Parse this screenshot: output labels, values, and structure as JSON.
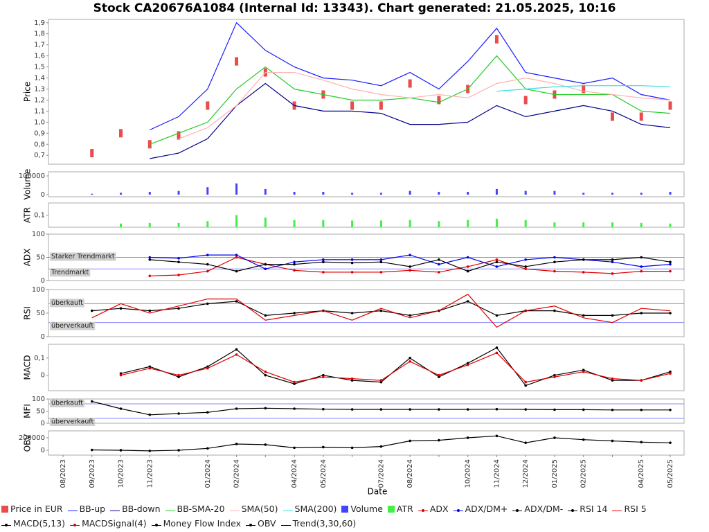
{
  "chart_data": {
    "type": "multi-panel",
    "title": "Stock CA20676A1084 (Internal Id: 13343). Chart generated: 21.05.2025, 10:16",
    "xlabel": "Date",
    "categories": [
      "08/2023",
      "09/2023",
      "10/2023",
      "11/2023",
      null,
      "01/2024",
      "02/2024",
      null,
      "04/2024",
      "05/2024",
      null,
      "07/2024",
      "08/2024",
      null,
      "10/2024",
      "11/2024",
      "12/2024",
      "01/2025",
      "02/2025",
      null,
      "04/2025",
      "05/2025"
    ],
    "panels": [
      {
        "type": "line",
        "ylabel": "Price",
        "ylim": [
          0.62,
          1.93
        ],
        "yticks": [
          {
            "value": 0.7,
            "label": "0,7"
          },
          {
            "value": 0.8,
            "label": "0,8"
          },
          {
            "value": 0.9,
            "label": "0,9"
          },
          {
            "value": 1.0,
            "label": "1,0"
          },
          {
            "value": 1.1,
            "label": "1,1"
          },
          {
            "value": 1.2,
            "label": "1,2"
          },
          {
            "value": 1.3,
            "label": "1,3"
          },
          {
            "value": 1.4,
            "label": "1,4"
          },
          {
            "value": 1.5,
            "label": "1,5"
          },
          {
            "value": 1.6,
            "label": "1,6"
          },
          {
            "value": 1.7,
            "label": "1,7"
          },
          {
            "value": 1.8,
            "label": "1,8"
          },
          {
            "value": 1.9,
            "label": "1,9"
          }
        ],
        "series": [
          {
            "name": "Price in EUR",
            "color": "#e84c4c",
            "style": "box",
            "values": [
              null,
              0.72,
              0.9,
              0.8,
              0.88,
              1.15,
              1.55,
              1.45,
              1.15,
              1.25,
              1.15,
              1.15,
              1.35,
              1.2,
              1.3,
              1.75,
              1.2,
              1.25,
              1.3,
              1.05,
              1.05,
              1.15
            ]
          },
          {
            "name": "BB-up",
            "color": "#1a1aff",
            "style": "line",
            "values": [
              null,
              null,
              null,
              0.93,
              1.05,
              1.3,
              1.9,
              1.65,
              1.5,
              1.4,
              1.38,
              1.33,
              1.45,
              1.3,
              1.55,
              1.85,
              1.45,
              1.4,
              1.35,
              1.4,
              1.25,
              1.2
            ]
          },
          {
            "name": "BB-down",
            "color": "#00008b",
            "style": "line",
            "values": [
              null,
              null,
              null,
              0.67,
              0.72,
              0.85,
              1.15,
              1.35,
              1.15,
              1.1,
              1.1,
              1.08,
              0.98,
              0.98,
              1.0,
              1.15,
              1.05,
              1.1,
              1.15,
              1.1,
              0.98,
              0.95
            ]
          },
          {
            "name": "BB-SMA-20",
            "color": "#22cc22",
            "style": "line",
            "values": [
              null,
              null,
              null,
              0.8,
              0.9,
              1.0,
              1.3,
              1.5,
              1.3,
              1.25,
              1.2,
              1.2,
              1.22,
              1.18,
              1.3,
              1.6,
              1.3,
              1.25,
              1.25,
              1.25,
              1.1,
              1.08
            ]
          },
          {
            "name": "SMA(50)",
            "color": "#ffb0b0",
            "style": "line",
            "values": [
              null,
              null,
              null,
              null,
              0.85,
              0.95,
              1.15,
              1.45,
              1.45,
              1.38,
              1.3,
              1.25,
              1.22,
              1.25,
              1.22,
              1.35,
              1.4,
              1.35,
              1.28,
              1.25,
              1.22,
              1.2
            ]
          },
          {
            "name": "SMA(200)",
            "color": "#33dddd",
            "style": "line",
            "values": [
              null,
              null,
              null,
              null,
              null,
              null,
              null,
              null,
              null,
              null,
              null,
              null,
              null,
              null,
              null,
              1.28,
              1.3,
              1.32,
              1.33,
              1.33,
              1.33,
              1.32
            ]
          }
        ]
      },
      {
        "type": "bar",
        "ylabel": "Volume",
        "ylim": [
          -11000,
          122000
        ],
        "yticks": [
          0,
          100000
        ],
        "series": [
          {
            "name": "Volume",
            "color": "#4444ff",
            "style": "bar",
            "values": [
              null,
              5000,
              10000,
              15000,
              20000,
              40000,
              60000,
              30000,
              15000,
              15000,
              10000,
              10000,
              20000,
              15000,
              15000,
              30000,
              20000,
              20000,
              10000,
              10000,
              10000,
              15000
            ]
          }
        ]
      },
      {
        "type": "bar",
        "ylabel": "ATR",
        "ylim": [
          0,
          0.2
        ],
        "yticks": [
          {
            "value": 0.1,
            "label": "0,1"
          }
        ],
        "series": [
          {
            "name": "ATR",
            "color": "#44ee44",
            "style": "bar",
            "values": [
              null,
              null,
              0.03,
              0.035,
              0.035,
              0.05,
              0.1,
              0.08,
              0.06,
              0.06,
              0.055,
              0.055,
              0.06,
              0.05,
              0.06,
              0.07,
              0.06,
              0.04,
              0.04,
              0.04,
              0.035,
              0.03
            ]
          }
        ]
      },
      {
        "type": "line",
        "ylabel": "ADX",
        "ylim": [
          0,
          100
        ],
        "yticks": [
          0,
          50,
          100
        ],
        "reflines": [
          {
            "value": 50,
            "label": "Starker Trendmarkt"
          },
          {
            "value": 25,
            "label": "Trendmarkt"
          }
        ],
        "series": [
          {
            "name": "ADX",
            "color": "#e00000",
            "style": "dots",
            "values": [
              null,
              null,
              null,
              10,
              12,
              20,
              50,
              35,
              22,
              18,
              18,
              18,
              22,
              18,
              30,
              45,
              25,
              20,
              18,
              15,
              20,
              20
            ]
          },
          {
            "name": "ADX/DM+",
            "color": "#0000ee",
            "style": "dots",
            "values": [
              null,
              null,
              null,
              50,
              48,
              55,
              55,
              25,
              40,
              45,
              45,
              45,
              55,
              35,
              50,
              30,
              45,
              50,
              45,
              40,
              30,
              35
            ]
          },
          {
            "name": "ADX/DM-",
            "color": "#000000",
            "style": "dots",
            "values": [
              null,
              null,
              null,
              45,
              40,
              35,
              20,
              35,
              35,
              40,
              38,
              40,
              30,
              45,
              20,
              40,
              30,
              40,
              45,
              45,
              50,
              40
            ]
          }
        ]
      },
      {
        "type": "line",
        "ylabel": "RSI",
        "ylim": [
          0,
          100
        ],
        "yticks": [
          0,
          50,
          100
        ],
        "reflines": [
          {
            "value": 70,
            "label": "überkauft"
          },
          {
            "value": 30,
            "label": "überverkauft"
          }
        ],
        "series": [
          {
            "name": "RSI 14",
            "color": "#000000",
            "style": "dots",
            "values": [
              null,
              55,
              60,
              55,
              60,
              70,
              75,
              45,
              50,
              55,
              50,
              55,
              45,
              55,
              75,
              45,
              55,
              55,
              45,
              45,
              50,
              50
            ]
          },
          {
            "name": "RSI 5",
            "color": "#e00000",
            "style": "line",
            "values": [
              null,
              40,
              70,
              50,
              65,
              80,
              80,
              35,
              45,
              55,
              35,
              60,
              40,
              55,
              90,
              20,
              55,
              65,
              40,
              30,
              60,
              55
            ]
          }
        ]
      },
      {
        "type": "line",
        "ylabel": "MACD",
        "ylim": [
          -0.09,
          0.18
        ],
        "yticks": [
          0,
          {
            "value": 0.1,
            "label": "0,1"
          }
        ],
        "series": [
          {
            "name": "MACD(5,13)",
            "color": "#000000",
            "style": "dots",
            "values": [
              null,
              null,
              0.01,
              0.05,
              -0.01,
              0.05,
              0.15,
              0.0,
              -0.05,
              0.0,
              -0.03,
              -0.04,
              0.1,
              -0.01,
              0.07,
              0.16,
              -0.06,
              0.0,
              0.03,
              -0.03,
              -0.03,
              0.02
            ]
          },
          {
            "name": "MACDSignal(4)",
            "color": "#e00000",
            "style": "dots",
            "values": [
              null,
              null,
              0.0,
              0.04,
              0.0,
              0.04,
              0.12,
              0.02,
              -0.04,
              -0.01,
              -0.02,
              -0.03,
              0.08,
              0.0,
              0.06,
              0.13,
              -0.04,
              -0.01,
              0.02,
              -0.02,
              -0.03,
              0.01
            ]
          }
        ]
      },
      {
        "type": "line",
        "ylabel": "MFI",
        "ylim": [
          0,
          100
        ],
        "yticks": [
          0,
          50,
          100
        ],
        "reflines": [
          {
            "value": 80,
            "label": "überkauft"
          },
          {
            "value": 20,
            "label": "überverkauft"
          }
        ],
        "series": [
          {
            "name": "Money Flow Index",
            "color": "#000000",
            "style": "dots",
            "values": [
              null,
              90,
              60,
              35,
              40,
              45,
              60,
              62,
              60,
              58,
              57,
              57,
              57,
              57,
              57,
              58,
              57,
              56,
              56,
              55,
              55,
              55
            ]
          }
        ]
      },
      {
        "type": "line",
        "ylabel": "OBV",
        "ylim": [
          -78000,
          311000
        ],
        "yticks": [
          0,
          200000
        ],
        "series": [
          {
            "name": "OBV",
            "color": "#000000",
            "style": "dots",
            "values": [
              null,
              5000,
              0,
              -10000,
              0,
              30000,
              100000,
              90000,
              40000,
              50000,
              40000,
              60000,
              150000,
              160000,
              200000,
              230000,
              120000,
              200000,
              170000,
              150000,
              130000,
              120000
            ]
          },
          {
            "name": "Trend(3,30,60)",
            "color": "#000000",
            "style": "line",
            "values": [
              null,
              null,
              null,
              null,
              null,
              null,
              null,
              null,
              null,
              null,
              null,
              null,
              null,
              null,
              null,
              null,
              null,
              null,
              null,
              null,
              null,
              null
            ]
          }
        ]
      }
    ]
  }
}
